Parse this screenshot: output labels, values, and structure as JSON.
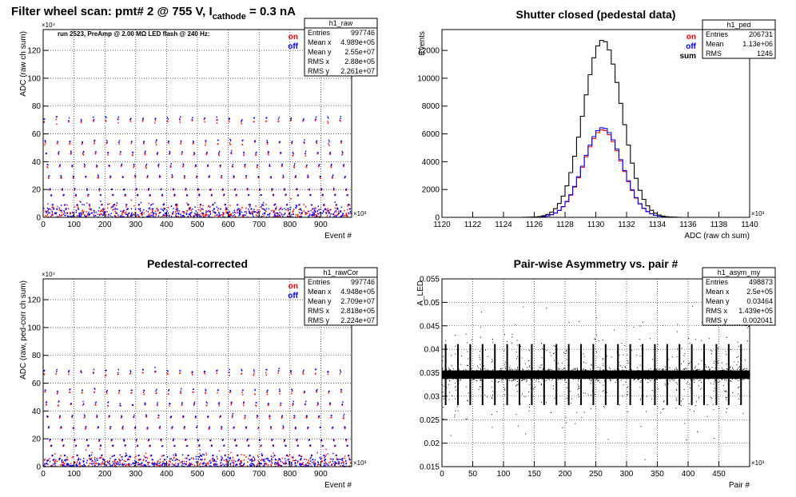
{
  "page_title": {
    "text": "Filter wheel scan: pmt#   2 @   755 V, I",
    "subscript": "cathode",
    "suffix": " = 0.3 nA"
  },
  "run_note": "run 2523, PreAmp @ 2.00 MΩ   LED flash @  240 Hz:",
  "chart_data": [
    {
      "id": "raw",
      "type": "scatter",
      "title": "",
      "xlabel": "Event #",
      "ylabel": "ADC (raw ch sum)",
      "xlim": [
        0,
        1000000
      ],
      "ylim": [
        0,
        1350000
      ],
      "x_exponent_label": "×10³",
      "y_exponent_label": "×10⁴",
      "x_ticks": [
        0,
        100000,
        200000,
        300000,
        400000,
        500000,
        600000,
        700000,
        800000,
        900000
      ],
      "x_tick_labels": [
        "0",
        "100",
        "200",
        "300",
        "400",
        "500",
        "600",
        "700",
        "800",
        "900"
      ],
      "y_ticks": [
        0,
        200000,
        400000,
        600000,
        800000,
        1000000,
        1200000
      ],
      "y_tick_labels": [
        "0",
        "20",
        "40",
        "60",
        "80",
        "100",
        "120"
      ],
      "grid": true,
      "legend_position": "top-right",
      "series": [
        {
          "name": "on",
          "color": "#ff0000"
        },
        {
          "name": "off",
          "color": "#0000ff"
        }
      ],
      "period": 40000,
      "steps": [
        {
          "offset": 0,
          "level": 700000
        },
        {
          "offset": 0.08,
          "level": 540000
        },
        {
          "offset": 0.17,
          "level": 460000
        },
        {
          "offset": 0.27,
          "level": 370000
        },
        {
          "offset": 0.37,
          "level": 290000
        },
        {
          "offset": 0.47,
          "level": 200000
        },
        {
          "offset": 0.57,
          "level": 160000
        },
        {
          "offset": 0.67,
          "level": 90000
        },
        {
          "offset": 0.77,
          "level": 60000
        },
        {
          "offset": 0.87,
          "level": 30000
        }
      ],
      "stats": {
        "name": "h1_raw",
        "rows": [
          [
            "Entries",
            "997746"
          ],
          [
            "Mean x",
            "4.989e+05"
          ],
          [
            "Mean y",
            "2.55e+07"
          ],
          [
            "RMS x",
            "2.88e+05"
          ],
          [
            "RMS y",
            "2.261e+07"
          ]
        ]
      }
    },
    {
      "id": "ped",
      "type": "histogram",
      "title": "Shutter closed (pedestal data)",
      "xlabel": "ADC (raw ch sum)",
      "ylabel": "Events",
      "xlim": [
        1120000,
        1140000
      ],
      "ylim": [
        0,
        13500
      ],
      "x_exponent_label": "×10³",
      "x_ticks": [
        1120000,
        1122000,
        1124000,
        1126000,
        1128000,
        1130000,
        1132000,
        1134000,
        1136000,
        1138000,
        1140000
      ],
      "x_tick_labels": [
        "1120",
        "1122",
        "1124",
        "1126",
        "1128",
        "1130",
        "1132",
        "1134",
        "1136",
        "1138",
        "1140"
      ],
      "y_ticks": [
        0,
        2000,
        4000,
        6000,
        8000,
        10000,
        12000
      ],
      "y_tick_labels": [
        "0",
        "2000",
        "4000",
        "6000",
        "8000",
        "10000",
        "12000"
      ],
      "grid": false,
      "legend_position": "top-right",
      "series": [
        {
          "name": "on",
          "color": "#ff0000",
          "peak": 6300,
          "mean": 1130450,
          "sigma": 1250
        },
        {
          "name": "off",
          "color": "#0000ff",
          "peak": 6450,
          "mean": 1130450,
          "sigma": 1250
        },
        {
          "name": "sum",
          "color": "#000000",
          "peak": 12750,
          "mean": 1130450,
          "sigma": 1250
        }
      ],
      "stats": {
        "name": "h1_ped",
        "rows": [
          [
            "Entries",
            "206731"
          ],
          [
            "Mean",
            "1.13e+06"
          ],
          [
            "RMS",
            "1246"
          ]
        ]
      }
    },
    {
      "id": "rawCor",
      "type": "scatter",
      "title": "Pedestal-corrected",
      "xlabel": "Event #",
      "ylabel": "ADC (raw, ped-corr ch sum)",
      "xlim": [
        0,
        1000000
      ],
      "ylim": [
        0,
        1350000
      ],
      "x_exponent_label": "×10³",
      "y_exponent_label": "×10⁴",
      "x_ticks": [
        0,
        100000,
        200000,
        300000,
        400000,
        500000,
        600000,
        700000,
        800000,
        900000
      ],
      "x_tick_labels": [
        "0",
        "100",
        "200",
        "300",
        "400",
        "500",
        "600",
        "700",
        "800",
        "900"
      ],
      "y_ticks": [
        0,
        200000,
        400000,
        600000,
        800000,
        1000000,
        1200000
      ],
      "y_tick_labels": [
        "0",
        "20",
        "40",
        "60",
        "80",
        "100",
        "120"
      ],
      "grid": true,
      "legend_position": "top-right",
      "series": [
        {
          "name": "on",
          "color": "#ff0000"
        },
        {
          "name": "off",
          "color": "#0000ff"
        }
      ],
      "period": 40000,
      "steps": [
        {
          "offset": 0,
          "level": 680000
        },
        {
          "offset": 0.08,
          "level": 540000
        },
        {
          "offset": 0.17,
          "level": 450000
        },
        {
          "offset": 0.27,
          "level": 360000
        },
        {
          "offset": 0.37,
          "level": 280000
        },
        {
          "offset": 0.47,
          "level": 190000
        },
        {
          "offset": 0.57,
          "level": 150000
        },
        {
          "offset": 0.67,
          "level": 80000
        },
        {
          "offset": 0.77,
          "level": 50000
        },
        {
          "offset": 0.87,
          "level": 20000
        }
      ],
      "stats": {
        "name": "h1_rawCor",
        "rows": [
          [
            "Entries",
            "997746"
          ],
          [
            "Mean x",
            "4.948e+05"
          ],
          [
            "Mean y",
            "2.709e+07"
          ],
          [
            "RMS x",
            "2.818e+05"
          ],
          [
            "RMS y",
            "2.224e+07"
          ]
        ]
      }
    },
    {
      "id": "asym",
      "type": "scatter",
      "title": "Pair-wise Asymmetry vs. pair #",
      "xlabel": "Pair #",
      "ylabel": "A_LED",
      "xlim": [
        0,
        500000
      ],
      "ylim": [
        0.015,
        0.055
      ],
      "x_exponent_label": "×10³",
      "x_ticks": [
        0,
        50000,
        100000,
        150000,
        200000,
        250000,
        300000,
        350000,
        400000,
        450000
      ],
      "x_tick_labels": [
        "0",
        "50",
        "100",
        "150",
        "200",
        "250",
        "300",
        "350",
        "400",
        "450"
      ],
      "y_ticks": [
        0.015,
        0.02,
        0.025,
        0.03,
        0.035,
        0.04,
        0.045,
        0.05,
        0.055
      ],
      "y_tick_labels": [
        "0.015",
        "0.02",
        "0.025",
        "0.03",
        "0.035",
        "0.04",
        "0.045",
        "0.05",
        "0.055"
      ],
      "grid": true,
      "center": 0.0346,
      "band_half_width": 0.0009,
      "spike_period": 20000,
      "stats": {
        "name": "h1_asym_my",
        "rows": [
          [
            "Entries",
            "498873"
          ],
          [
            "Mean x",
            "2.5e+05"
          ],
          [
            "Mean y",
            "0.03464"
          ],
          [
            "RMS x",
            "1.439e+05"
          ],
          [
            "RMS y",
            "0.002041"
          ]
        ]
      }
    }
  ]
}
